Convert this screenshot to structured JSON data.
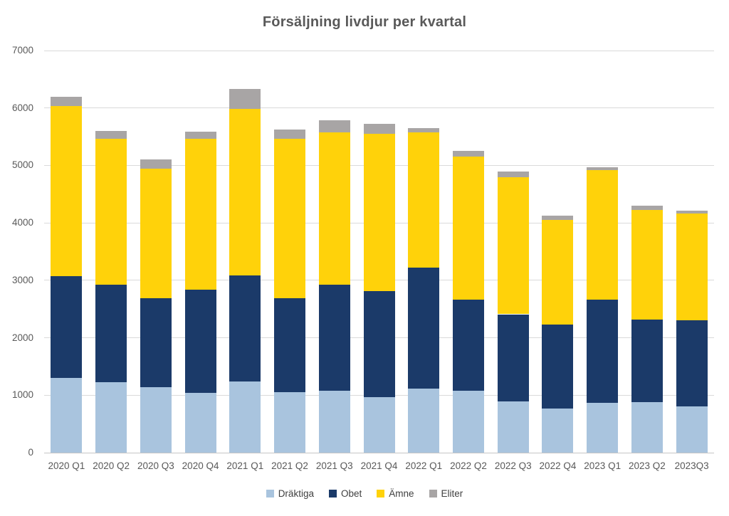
{
  "chart_data": {
    "type": "bar",
    "stacked": true,
    "title": "Försäljning livdjur per kvartal",
    "categories": [
      "2020 Q1",
      "2020 Q2",
      "2020 Q3",
      "2020 Q4",
      "2021 Q1",
      "2021 Q2",
      "2021 Q3",
      "2021 Q4",
      "2022 Q1",
      "2022 Q2",
      "2022 Q3",
      "2022 Q4",
      "2023 Q1",
      "2023 Q2",
      "2023Q3"
    ],
    "series": [
      {
        "name": "Dräktiga",
        "color": "#A9C4DE",
        "values": [
          1300,
          1230,
          1140,
          1040,
          1240,
          1050,
          1080,
          970,
          1110,
          1080,
          890,
          770,
          870,
          880,
          810
        ]
      },
      {
        "name": "Obet",
        "color": "#1B3A69",
        "values": [
          1770,
          1700,
          1550,
          1800,
          1840,
          1640,
          1840,
          1840,
          2110,
          1590,
          1520,
          1460,
          1790,
          1440,
          1500
        ]
      },
      {
        "name": "Ämne",
        "color": "#FFD20A",
        "values": [
          2960,
          2540,
          2250,
          2630,
          2900,
          2770,
          2660,
          2740,
          2350,
          2490,
          2380,
          1820,
          2260,
          1910,
          1850
        ]
      },
      {
        "name": "Eliter",
        "color": "#A8A5A5",
        "values": [
          170,
          130,
          170,
          120,
          350,
          170,
          210,
          170,
          80,
          90,
          100,
          80,
          50,
          70,
          50
        ]
      }
    ],
    "ylim": [
      0,
      7000
    ],
    "yticks": [
      0,
      1000,
      2000,
      3000,
      4000,
      5000,
      6000,
      7000
    ],
    "grid": true,
    "legend_position": "bottom",
    "colors": {
      "title_text": "#595959",
      "axis_text": "#595959",
      "legend_text": "#404040",
      "gridline": "#DADADA",
      "axis_line": "#C6C6C6",
      "background": "#FFFFFF"
    }
  }
}
